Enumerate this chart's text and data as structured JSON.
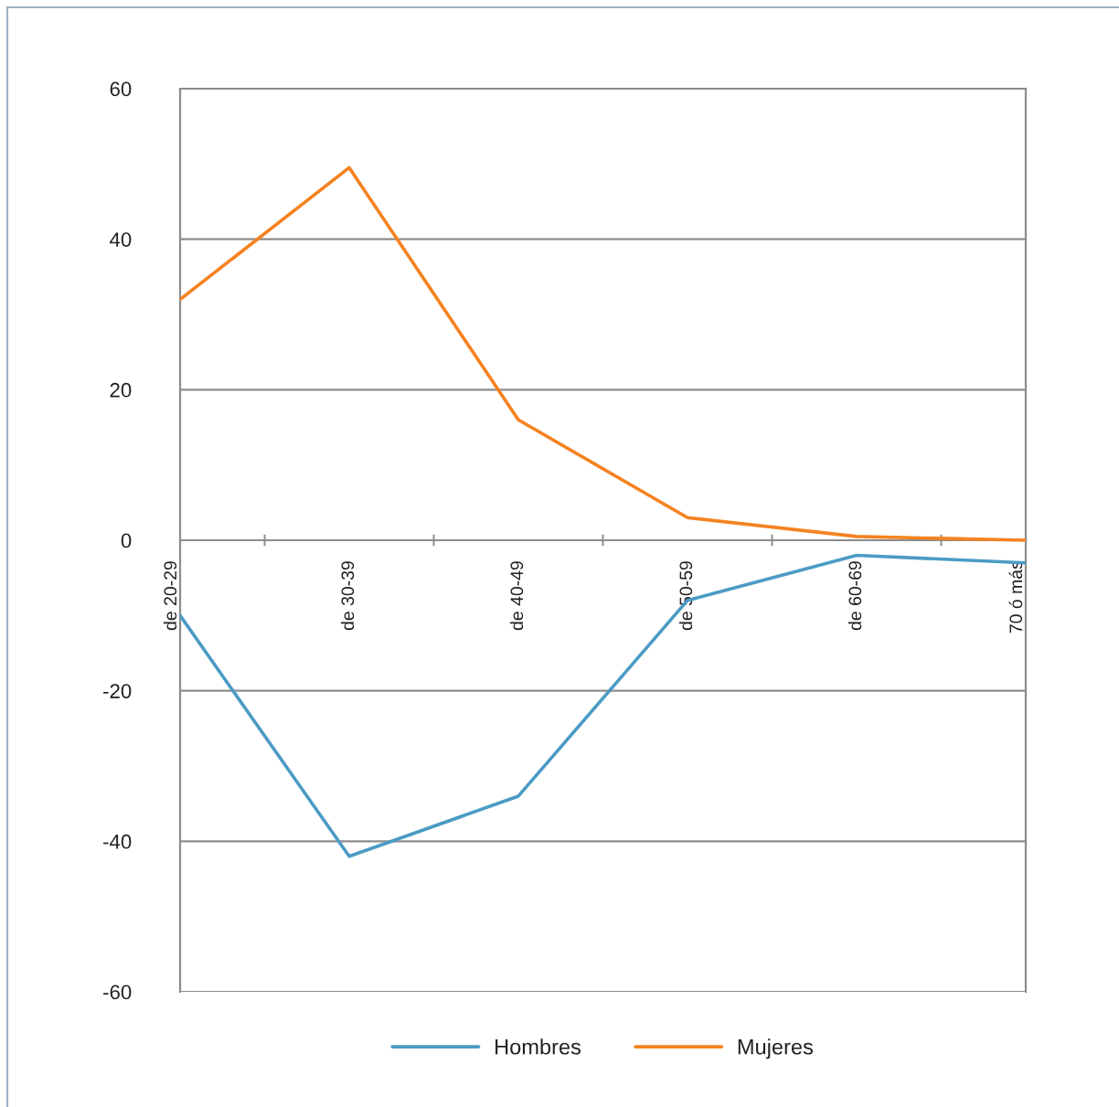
{
  "chart_data": {
    "type": "line",
    "categories": [
      "de 20-29",
      "de 30-39",
      "de 40-49",
      "de 50-59",
      "de 60-69",
      "70 ó más"
    ],
    "series": [
      {
        "name": "Hombres",
        "color": "#4b9bc4",
        "values": [
          -10,
          -42,
          -34,
          -8,
          -2,
          -3
        ]
      },
      {
        "name": "Mujeres",
        "color": "#f58220",
        "values": [
          32,
          49.5,
          16,
          3,
          0.5,
          0
        ]
      }
    ],
    "ylim": [
      -60,
      60
    ],
    "yticks": [
      -60,
      -40,
      -20,
      0,
      20,
      40,
      60
    ],
    "grid": "y",
    "legend": "bottom"
  }
}
